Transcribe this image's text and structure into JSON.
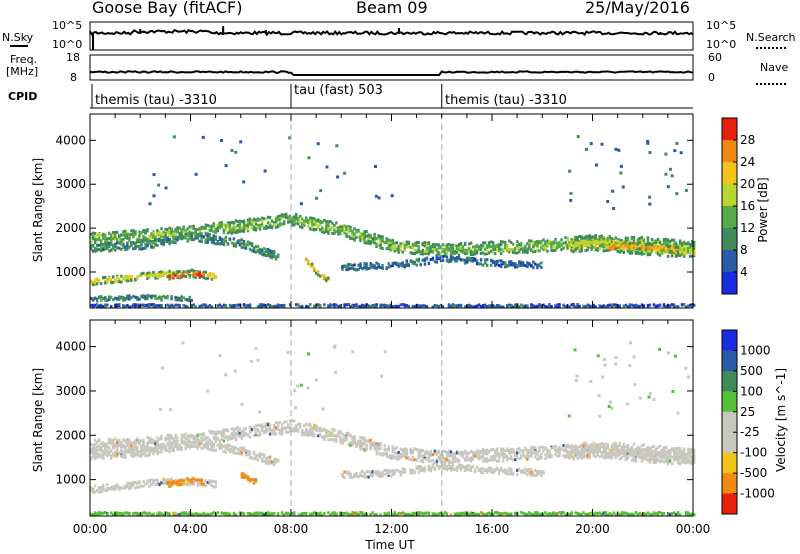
{
  "header": {
    "station": "Goose Bay (fitACF)",
    "beam": "Beam 09",
    "date": "25/May/2016"
  },
  "nsky_panel": {
    "left_label": "N.Sky",
    "right_label": "N.Search",
    "left_ticks": [
      "10^5",
      "10^0"
    ],
    "right_ticks": [
      "10^5",
      "10^0"
    ]
  },
  "freq_panel": {
    "left_label_1": "Freq.",
    "left_label_2": "[MHz]",
    "right_label": "Nave",
    "left_ticks": [
      "18",
      "8"
    ],
    "right_ticks": [
      "60",
      "0"
    ]
  },
  "cpid_panel": {
    "label": "CPID",
    "segments": [
      "themis (tau) -3310",
      "tau (fast) 503",
      "themis (tau) -3310"
    ]
  },
  "chart_data": [
    {
      "type": "heatmap",
      "name": "power",
      "ylabel": "Slant Range [km]",
      "xlabel": "Time UT",
      "x_ticks": [
        "00:00",
        "04:00",
        "08:00",
        "12:00",
        "16:00",
        "20:00",
        "00:00"
      ],
      "x_range_hours": [
        0,
        24
      ],
      "y_ticks": [
        1000,
        2000,
        3000,
        4000
      ],
      "ylim": [
        180,
        4600
      ],
      "colorbar_label": "Power [dB]",
      "colorbar_ticks": [
        28,
        24,
        20,
        16,
        12,
        8,
        4
      ],
      "colorbar_range": [
        0,
        32
      ],
      "colors": [
        "#1a2be0",
        "#2a5aa8",
        "#3f8c5a",
        "#54aa46",
        "#b8d830",
        "#f2c418",
        "#f28a10",
        "#e82010"
      ],
      "mode_change_hours": [
        8.0,
        14.0
      ],
      "bands": [
        {
          "t": [
            0,
            2,
            4,
            6,
            8,
            10,
            12,
            14,
            16,
            18,
            20,
            22,
            24
          ],
          "r": [
            1750,
            1820,
            1900,
            2050,
            2200,
            1950,
            1600,
            1500,
            1550,
            1600,
            1700,
            1650,
            1550
          ],
          "width": 280,
          "level": 14
        },
        {
          "t": [
            0,
            1,
            2,
            3,
            4,
            5
          ],
          "r": [
            780,
            830,
            900,
            950,
            950,
            900
          ],
          "width": 150,
          "level": 20
        },
        {
          "t": [
            0,
            2,
            4,
            6,
            7.5
          ],
          "r": [
            1550,
            1600,
            1800,
            1650,
            1350
          ],
          "width": 180,
          "level": 10
        },
        {
          "t": [
            3.0,
            3.5,
            4.0,
            4.5
          ],
          "r": [
            880,
            930,
            980,
            930
          ],
          "width": 130,
          "level": 28
        },
        {
          "t": [
            8.5,
            9,
            9.5
          ],
          "r": [
            1300,
            1000,
            800
          ],
          "width": 120,
          "level": 22
        },
        {
          "t": [
            19,
            20,
            21,
            22,
            23,
            24
          ],
          "r": [
            1600,
            1650,
            1600,
            1550,
            1500,
            1500
          ],
          "width": 300,
          "level": 18
        },
        {
          "t": [
            20.5,
            21.5,
            22.5,
            23.5
          ],
          "r": [
            1550,
            1600,
            1550,
            1500
          ],
          "width": 140,
          "level": 24
        },
        {
          "t": [
            0,
            1,
            2,
            3,
            4
          ],
          "r": [
            380,
            400,
            420,
            400,
            380
          ],
          "width": 100,
          "level": 10
        },
        {
          "t": [
            10,
            12,
            14,
            16,
            18
          ],
          "r": [
            1100,
            1150,
            1300,
            1200,
            1150
          ],
          "width": 140,
          "level": 7
        },
        {
          "t": [
            0,
            6,
            12,
            18,
            24
          ],
          "r": [
            230,
            230,
            230,
            230,
            230
          ],
          "width": 60,
          "level": 6
        }
      ]
    },
    {
      "type": "heatmap",
      "name": "velocity",
      "ylabel": "Slant Range [km]",
      "xlabel": "Time UT",
      "x_ticks": [
        "00:00",
        "04:00",
        "08:00",
        "12:00",
        "16:00",
        "20:00",
        "00:00"
      ],
      "x_range_hours": [
        0,
        24
      ],
      "y_ticks": [
        1000,
        2000,
        3000,
        4000
      ],
      "ylim": [
        180,
        4600
      ],
      "colorbar_label": "Velocity [m s^-1]",
      "colorbar_ticks": [
        "1000",
        "500",
        "100",
        "25",
        "-25",
        "-100",
        "-500",
        "-1000"
      ],
      "colors": [
        "#1a2be0",
        "#2a5aa8",
        "#3f8c5a",
        "#54c038",
        "#c8c8c0",
        "#f2c418",
        "#f28a10",
        "#e82010"
      ],
      "ground_scatter_color": "#c8c8c0",
      "mode_change_hours": [
        8.0,
        14.0
      ],
      "bands": [
        {
          "t": [
            0,
            2,
            4,
            6,
            8,
            10,
            12,
            14,
            16,
            18,
            20,
            22,
            24
          ],
          "r": [
            1750,
            1820,
            1900,
            2050,
            2200,
            1950,
            1600,
            1500,
            1550,
            1600,
            1700,
            1650,
            1550
          ],
          "width": 280,
          "vel": 0
        },
        {
          "t": [
            0,
            2,
            4,
            6,
            7.5
          ],
          "r": [
            1550,
            1600,
            1800,
            1650,
            1350
          ],
          "width": 180,
          "vel": 0
        },
        {
          "t": [
            0,
            1,
            2,
            3,
            4,
            5
          ],
          "r": [
            780,
            830,
            900,
            950,
            950,
            900
          ],
          "width": 150,
          "vel": 0
        },
        {
          "t": [
            3.0,
            3.5,
            4.0,
            4.5
          ],
          "r": [
            880,
            930,
            980,
            930
          ],
          "width": 120,
          "vel": -300
        },
        {
          "t": [
            6.0,
            6.3,
            6.6
          ],
          "r": [
            1100,
            1000,
            950
          ],
          "width": 110,
          "vel": -150
        },
        {
          "t": [
            19,
            20,
            21,
            22,
            23,
            24
          ],
          "r": [
            1600,
            1650,
            1600,
            1550,
            1500,
            1500
          ],
          "width": 300,
          "vel": 0
        },
        {
          "t": [
            10,
            12,
            14,
            16,
            18
          ],
          "r": [
            1100,
            1150,
            1300,
            1200,
            1150
          ],
          "width": 140,
          "vel": 0
        },
        {
          "t": [
            0,
            6,
            12,
            18,
            24
          ],
          "r": [
            230,
            230,
            230,
            230,
            230
          ],
          "width": 60,
          "vel": 80
        }
      ]
    }
  ]
}
